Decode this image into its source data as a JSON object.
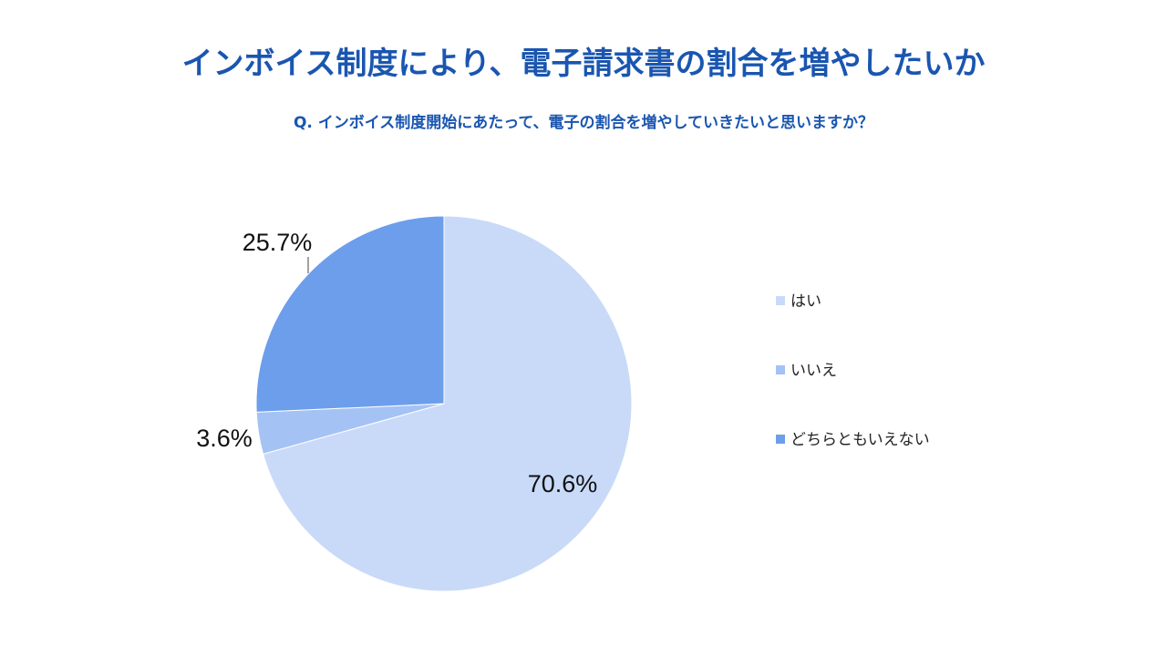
{
  "chart_data": {
    "type": "pie",
    "title": "インボイス制度により、電子請求書の割合を増やしたいか",
    "subtitle": "Q. インボイス制度開始にあたって、電子の割合を増やしていきたいと思いますか？",
    "slices": [
      {
        "label": "はい",
        "value": 70.6,
        "display": "70.6%",
        "color": "#c9daf8"
      },
      {
        "label": "いいえ",
        "value": 3.6,
        "display": "3.6%",
        "color": "#a4c2f4"
      },
      {
        "label": "どちらともいえない",
        "value": 25.7,
        "display": "25.7%",
        "color": "#6d9eeb"
      }
    ],
    "start_angle_deg": 0,
    "direction": "clockwise",
    "legend_position": "right"
  }
}
